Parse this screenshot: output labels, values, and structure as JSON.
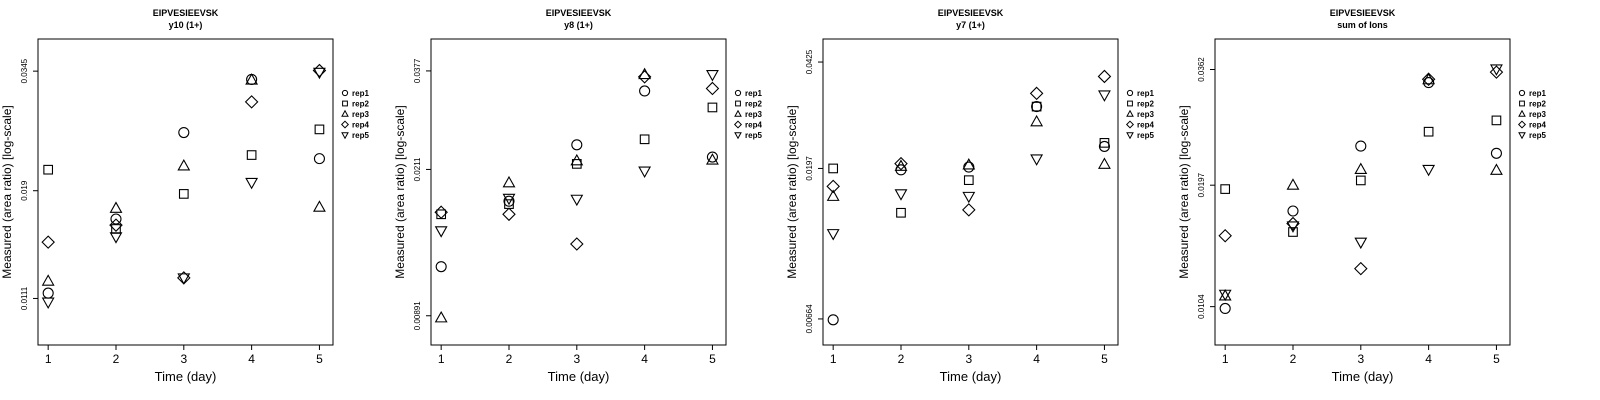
{
  "chart_data": [
    {
      "type": "scatter",
      "title": "EIPVESIEEVSK",
      "subtitle": "y10 (1+)",
      "xlabel": "Time (day)",
      "ylabel": "Measured (area ratio) [log-scale]",
      "x": [
        1,
        2,
        3,
        4,
        5
      ],
      "xlim": [
        0.85,
        5.2
      ],
      "ylim": [
        0.0088,
        0.0405
      ],
      "log_y": true,
      "y_ticks": [
        0.0111,
        0.019,
        0.0345
      ],
      "y_tick_labels": [
        "0.0111",
        "0.019",
        "0.0345"
      ],
      "legend": {
        "position": "right",
        "entries": [
          "rep1",
          "rep2",
          "rep3",
          "rep4",
          "rep5"
        ],
        "markers": [
          "circle",
          "square",
          "triangle-up",
          "diamond",
          "triangle-down"
        ]
      },
      "series": [
        {
          "name": "rep1",
          "marker": "circle",
          "values": [
            0.0114,
            0.0165,
            0.0254,
            0.0331,
            0.0223
          ]
        },
        {
          "name": "rep2",
          "marker": "square",
          "values": [
            0.0211,
            0.0157,
            0.0187,
            0.0227,
            0.0258
          ]
        },
        {
          "name": "rep3",
          "marker": "triangle-up",
          "values": [
            0.0121,
            0.0174,
            0.0215,
            0.033,
            0.0175
          ]
        },
        {
          "name": "rep4",
          "marker": "diamond",
          "values": [
            0.0147,
            0.016,
            0.0123,
            0.0296,
            0.0346
          ]
        },
        {
          "name": "rep5",
          "marker": "triangle-down",
          "values": [
            0.0109,
            0.0151,
            0.0123,
            0.0198,
            0.0343
          ]
        }
      ]
    },
    {
      "type": "scatter",
      "title": "EIPVESIEEVSK",
      "subtitle": "y8 (1+)",
      "xlabel": "Time (day)",
      "ylabel": "Measured (area ratio) [log-scale]",
      "x": [
        1,
        2,
        3,
        4,
        5
      ],
      "xlim": [
        0.85,
        5.2
      ],
      "ylim": [
        0.0075,
        0.0455
      ],
      "log_y": true,
      "y_ticks": [
        0.00891,
        0.0211,
        0.0377
      ],
      "y_tick_labels": [
        "0.00891",
        "0.0211",
        "0.0377"
      ],
      "legend": {
        "position": "right",
        "entries": [
          "rep1",
          "rep2",
          "rep3",
          "rep4",
          "rep5"
        ],
        "markers": [
          "circle",
          "square",
          "triangle-up",
          "diamond",
          "triangle-down"
        ]
      },
      "series": [
        {
          "name": "rep1",
          "marker": "circle",
          "values": [
            0.0119,
            0.0175,
            0.0244,
            0.0335,
            0.0227
          ]
        },
        {
          "name": "rep2",
          "marker": "square",
          "values": [
            0.0162,
            0.0172,
            0.0218,
            0.0252,
            0.0304
          ]
        },
        {
          "name": "rep3",
          "marker": "triangle-up",
          "values": [
            0.0088,
            0.0195,
            0.0222,
            0.0369,
            0.0223
          ]
        },
        {
          "name": "rep4",
          "marker": "diamond",
          "values": [
            0.0164,
            0.0162,
            0.0136,
            0.0364,
            0.034
          ]
        },
        {
          "name": "rep5",
          "marker": "triangle-down",
          "values": [
            0.0147,
            0.0178,
            0.0177,
            0.0209,
            0.0369
          ]
        }
      ]
    },
    {
      "type": "scatter",
      "title": "EIPVESIEEVSK",
      "subtitle": "y7 (1+)",
      "xlabel": "Time (day)",
      "ylabel": "Measured (area ratio) [log-scale]",
      "x": [
        1,
        2,
        3,
        4,
        5
      ],
      "xlim": [
        0.85,
        5.2
      ],
      "ylim": [
        0.0055,
        0.0502
      ],
      "log_y": true,
      "y_ticks": [
        0.00664,
        0.0197,
        0.0425
      ],
      "y_tick_labels": [
        "0.00664",
        "0.0197",
        "0.0425"
      ],
      "legend": {
        "position": "right",
        "entries": [
          "rep1",
          "rep2",
          "rep3",
          "rep4",
          "rep5"
        ],
        "markers": [
          "circle",
          "square",
          "triangle-up",
          "diamond",
          "triangle-down"
        ]
      },
      "series": [
        {
          "name": "rep1",
          "marker": "circle",
          "values": [
            0.0066,
            0.0195,
            0.0199,
            0.0308,
            0.0231
          ]
        },
        {
          "name": "rep2",
          "marker": "square",
          "values": [
            0.0197,
            0.0143,
            0.0181,
            0.0308,
            0.0237
          ]
        },
        {
          "name": "rep3",
          "marker": "triangle-up",
          "values": [
            0.0161,
            0.02,
            0.0202,
            0.0276,
            0.0203
          ]
        },
        {
          "name": "rep4",
          "marker": "diamond",
          "values": [
            0.0173,
            0.0204,
            0.0146,
            0.0339,
            0.0383
          ]
        },
        {
          "name": "rep5",
          "marker": "triangle-down",
          "values": [
            0.0123,
            0.0164,
            0.0161,
            0.0211,
            0.0335
          ]
        }
      ]
    },
    {
      "type": "scatter",
      "title": "EIPVESIEEVSK",
      "subtitle": "sum of Ions",
      "xlabel": "Time (day)",
      "ylabel": "Measured (area ratio) [log-scale]",
      "x": [
        1,
        2,
        3,
        4,
        5
      ],
      "xlim": [
        0.85,
        5.2
      ],
      "ylim": [
        0.0085,
        0.0425
      ],
      "log_y": true,
      "y_ticks": [
        0.0104,
        0.0197,
        0.0362
      ],
      "y_tick_labels": [
        "0.0104",
        "0.0197",
        "0.0362"
      ],
      "legend": {
        "position": "right",
        "entries": [
          "rep1",
          "rep2",
          "rep3",
          "rep4",
          "rep5"
        ],
        "markers": [
          "circle",
          "square",
          "triangle-up",
          "diamond",
          "triangle-down"
        ]
      },
      "series": [
        {
          "name": "rep1",
          "marker": "circle",
          "values": [
            0.0103,
            0.0172,
            0.0242,
            0.0338,
            0.0233
          ]
        },
        {
          "name": "rep2",
          "marker": "square",
          "values": [
            0.0193,
            0.0154,
            0.0202,
            0.0261,
            0.0277
          ]
        },
        {
          "name": "rep3",
          "marker": "triangle-up",
          "values": [
            0.011,
            0.0197,
            0.0214,
            0.0343,
            0.0213
          ]
        },
        {
          "name": "rep4",
          "marker": "diamond",
          "values": [
            0.0151,
            0.0161,
            0.0127,
            0.0344,
            0.0357
          ]
        },
        {
          "name": "rep5",
          "marker": "triangle-down",
          "values": [
            0.0111,
            0.0159,
            0.0146,
            0.0214,
            0.0363
          ]
        }
      ]
    }
  ]
}
